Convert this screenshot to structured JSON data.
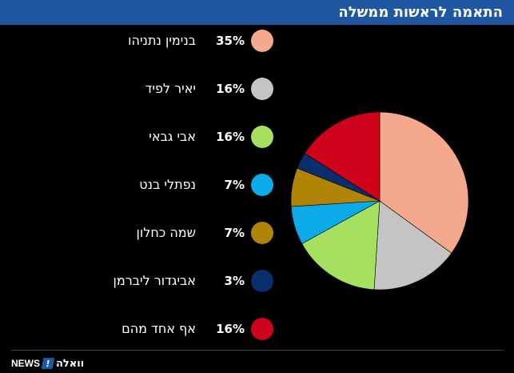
{
  "header": {
    "title": "התאמה לראשות ממשלה"
  },
  "chart_data": {
    "type": "pie",
    "title": "התאמה לראשות ממשלה",
    "labels": [
      "בנימין נתניהו",
      "יאיר לפיד",
      "אבי גבאי",
      "נפתלי בנט",
      "שמה כחלון",
      "אביגדור ליברמן",
      "אף אחד מהם"
    ],
    "values": [
      35,
      16,
      16,
      7,
      7,
      3,
      16
    ],
    "value_labels": [
      "35%",
      "16%",
      "16%",
      "7%",
      "7%",
      "3%",
      "16%"
    ],
    "colors": [
      "#f4a98c",
      "#c4c4c4",
      "#a6e060",
      "#0aabe8",
      "#b08406",
      "#0a2d6e",
      "#d0021b"
    ]
  },
  "footer": {
    "brand_news": "NEWS",
    "brand_walla": "וואלה",
    "brand_mark": "!"
  }
}
